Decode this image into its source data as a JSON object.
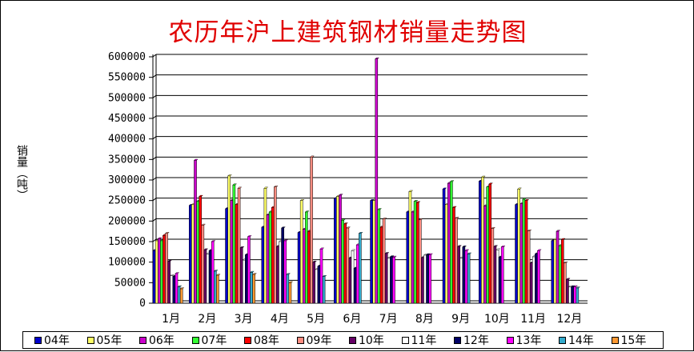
{
  "chart_data": {
    "type": "bar",
    "title": "农历年沪上建筑钢材销量走势图",
    "ylabel": "销量（吨）",
    "xlabel": "",
    "ylim": [
      0,
      600000
    ],
    "ytick_step": 50000,
    "ytick_labels": [
      "0",
      "50000",
      "100000",
      "150000",
      "200000",
      "250000",
      "300000",
      "350000",
      "400000",
      "450000",
      "500000",
      "550000",
      "600000"
    ],
    "grid": true,
    "legend_position": "bottom",
    "categories": [
      "1月",
      "2月",
      "3月",
      "4月",
      "5月",
      "6月",
      "7月",
      "8月",
      "9月",
      "10月",
      "11月",
      "12月"
    ],
    "series": [
      {
        "name": "04年",
        "color": "#0000cc",
        "values": [
          128000,
          238000,
          230000,
          185000,
          172000,
          255000,
          250000,
          222000,
          278000,
          297000,
          240000,
          152000
        ]
      },
      {
        "name": "05年",
        "color": "#ffff66",
        "values": [
          152000,
          240000,
          310000,
          280000,
          250000,
          260000,
          250000,
          272000,
          240000,
          307000,
          278000,
          155000
        ]
      },
      {
        "name": "06年",
        "color": "#cc00cc",
        "values": [
          157000,
          348000,
          250000,
          215000,
          180000,
          263000,
          595000,
          222000,
          292000,
          237000,
          242000,
          175000
        ]
      },
      {
        "name": "07年",
        "color": "#33ff33",
        "values": [
          152000,
          248000,
          288000,
          222000,
          222000,
          202000,
          228000,
          248000,
          296000,
          283000,
          253000,
          140000
        ]
      },
      {
        "name": "08年",
        "color": "#ff0000",
        "values": [
          165000,
          260000,
          240000,
          233000,
          175000,
          193000,
          185000,
          245000,
          233000,
          290000,
          250000,
          155000
        ]
      },
      {
        "name": "09年",
        "color": "#ff8c80",
        "values": [
          170000,
          190000,
          280000,
          283000,
          356000,
          183000,
          205000,
          203000,
          207000,
          182000,
          176000,
          98000
        ]
      },
      {
        "name": "10年",
        "color": "#660066",
        "values": [
          102000,
          130000,
          135000,
          138000,
          100000,
          110000,
          121000,
          111000,
          138000,
          138000,
          98000,
          58000
        ]
      },
      {
        "name": "11年",
        "color": "#ffffff",
        "values": [
          67000,
          120000,
          105000,
          150000,
          82000,
          128000,
          110000,
          117000,
          110000,
          130000,
          113000,
          40000
        ]
      },
      {
        "name": "12年",
        "color": "#000066",
        "values": [
          65000,
          128000,
          118000,
          183000,
          90000,
          85000,
          113000,
          118000,
          137000,
          112000,
          120000,
          40000
        ]
      },
      {
        "name": "13年",
        "color": "#ff00ff",
        "values": [
          72000,
          150000,
          162000,
          152000,
          132000,
          142000,
          112000,
          118000,
          128000,
          137000,
          128000,
          40000
        ]
      },
      {
        "name": "14年",
        "color": "#33aacc",
        "values": [
          40000,
          78000,
          75000,
          70000,
          65000,
          170000,
          0,
          0,
          120000,
          0,
          0,
          37000
        ]
      },
      {
        "name": "15年",
        "color": "#ff9933",
        "values": [
          35000,
          68000,
          70000,
          50000,
          0,
          0,
          0,
          0,
          0,
          0,
          0,
          0
        ]
      }
    ]
  }
}
